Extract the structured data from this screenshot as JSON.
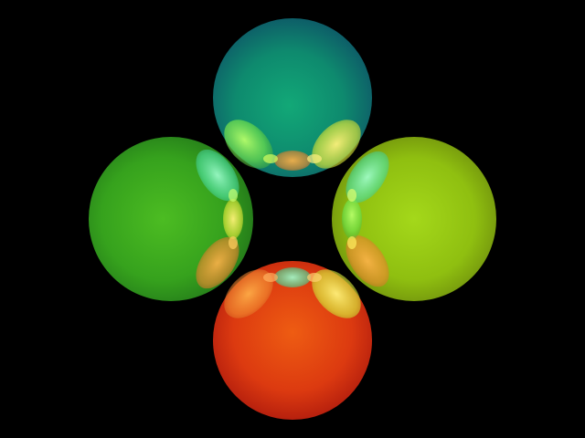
{
  "scene": {
    "background": "#000000",
    "spheres": [
      {
        "id": "top",
        "color_center": "#0f9a70",
        "color_edge": "#0f5a6a"
      },
      {
        "id": "left",
        "color_center": "#44b020",
        "color_edge": "#227a1e"
      },
      {
        "id": "right",
        "color_center": "#a6d21a",
        "color_edge": "#6f8e0c"
      },
      {
        "id": "bottom",
        "color_center": "#e84a10",
        "color_edge": "#b01e10"
      }
    ]
  }
}
